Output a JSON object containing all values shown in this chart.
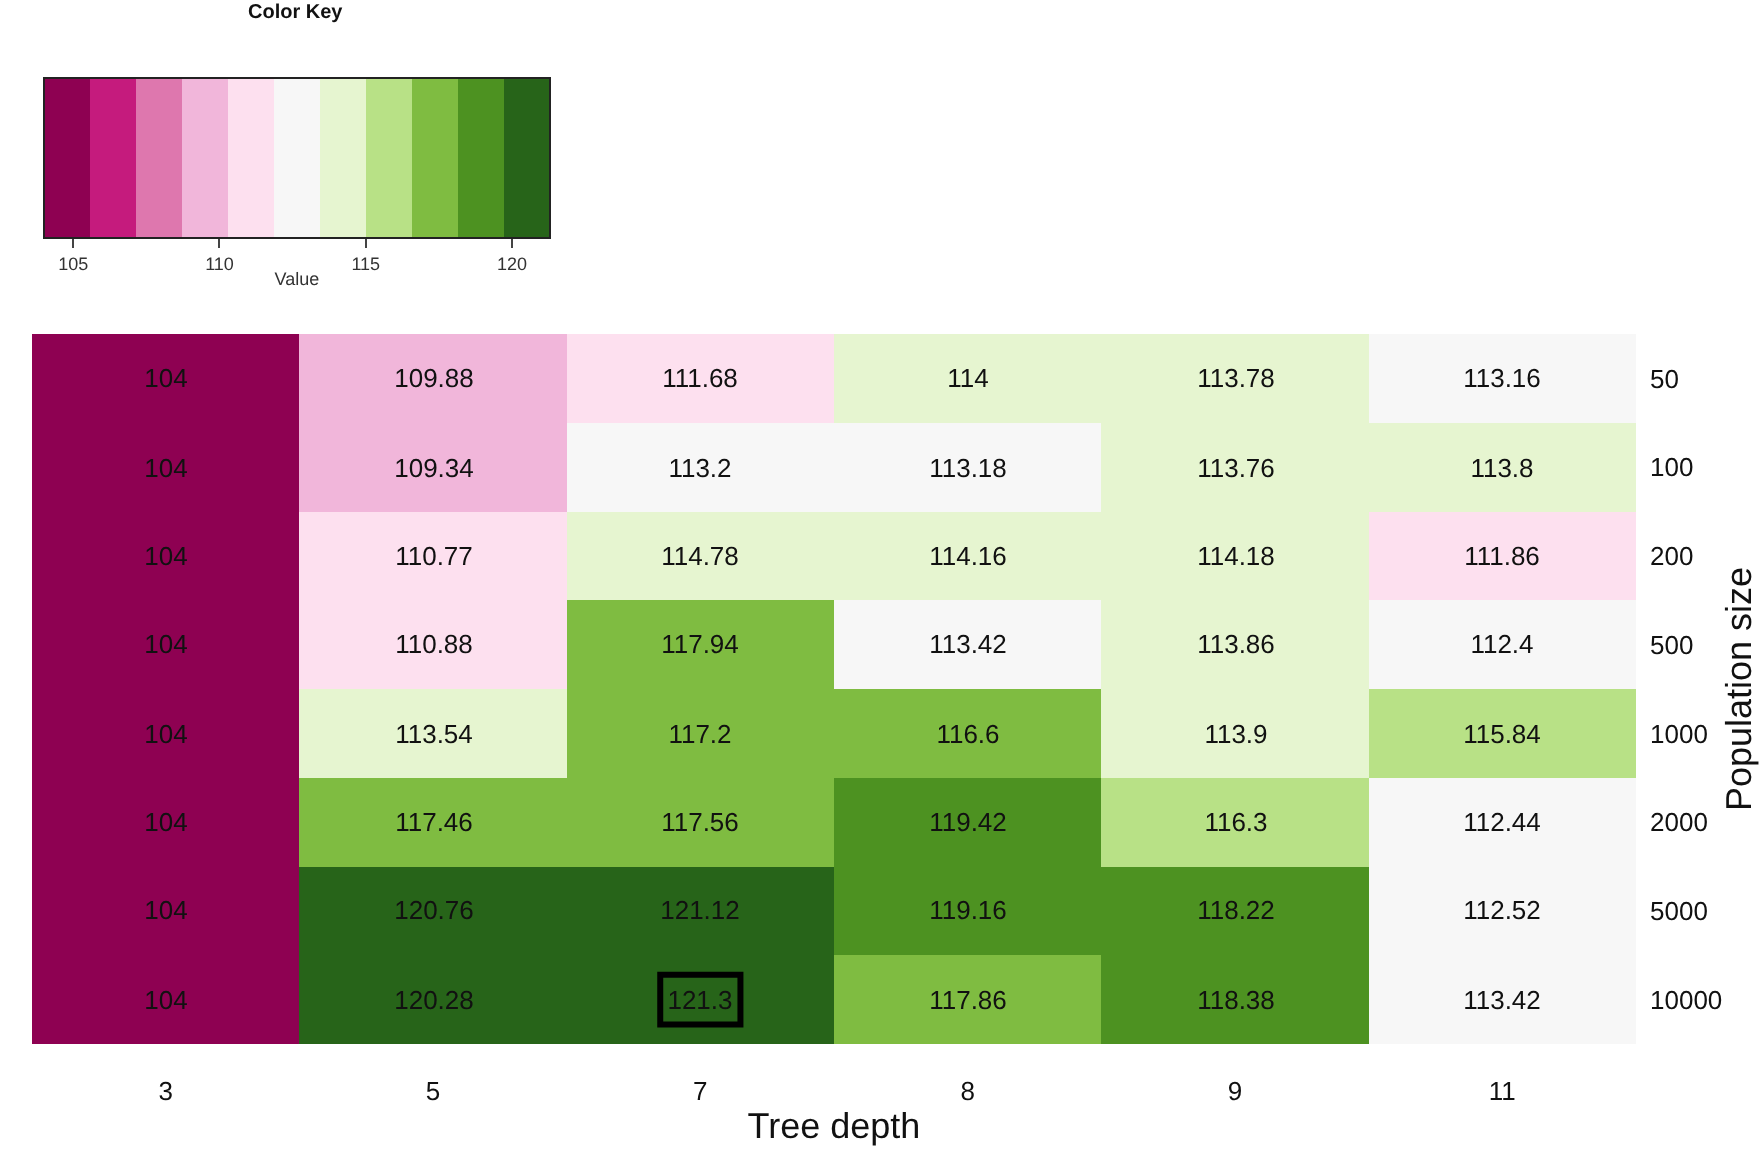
{
  "chart_data": {
    "type": "heatmap",
    "xlabel": "Tree depth",
    "ylabel": "Population size",
    "clabel": "Value",
    "annotations": [
      "Color Key"
    ],
    "categories": [
      "3",
      "5",
      "7",
      "8",
      "9",
      "11"
    ],
    "y_categories": [
      "50",
      "100",
      "200",
      "500",
      "1000",
      "2000",
      "5000",
      "10000"
    ],
    "cells": [
      [
        104,
        109.88,
        111.68,
        114,
        113.78,
        113.16
      ],
      [
        104,
        109.34,
        113.2,
        113.18,
        113.76,
        113.8
      ],
      [
        104,
        110.77,
        114.78,
        114.16,
        114.18,
        111.86
      ],
      [
        104,
        110.88,
        117.94,
        113.42,
        113.86,
        112.4
      ],
      [
        104,
        113.54,
        117.2,
        116.6,
        113.9,
        115.84
      ],
      [
        104,
        117.46,
        117.56,
        119.42,
        116.3,
        112.44
      ],
      [
        104,
        120.76,
        121.12,
        119.16,
        118.22,
        112.52
      ],
      [
        104,
        120.28,
        121.3,
        117.86,
        118.38,
        113.42
      ]
    ],
    "clim": [
      104,
      121.3
    ],
    "cticks": [
      105,
      110,
      115,
      120
    ],
    "data_labels": true
  }
}
